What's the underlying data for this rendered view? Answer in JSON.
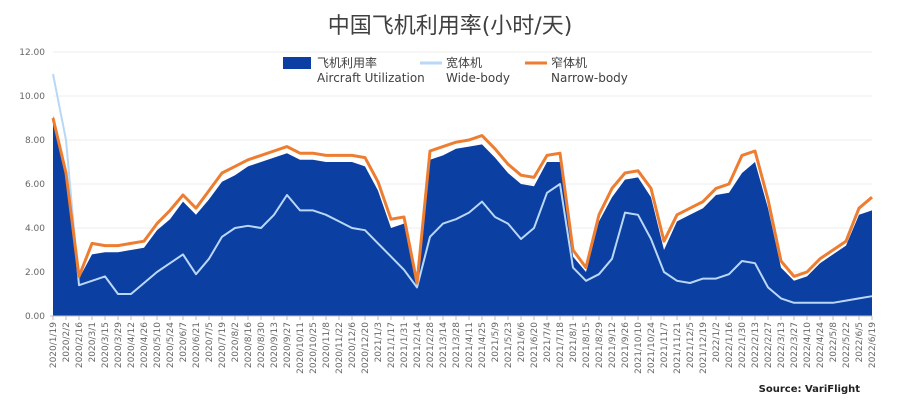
{
  "chart_data": {
    "type": "area",
    "title": "中国飞机利用率(小时/天)",
    "source": "Source: VariFlight",
    "xlabel": "",
    "ylabel": "",
    "ylim": [
      0,
      12
    ],
    "yticks": [
      "0.00",
      "2.00",
      "4.00",
      "6.00",
      "8.00",
      "10.00",
      "12.00"
    ],
    "grid": true,
    "legend_position": "top",
    "categories": [
      "2020/1/19",
      "2020/2/2",
      "2020/2/16",
      "2020/3/1",
      "2020/3/15",
      "2020/3/29",
      "2020/4/12",
      "2020/4/26",
      "2020/5/10",
      "2020/5/24",
      "2020/6/7",
      "2020/6/21",
      "2020/7/5",
      "2020/7/19",
      "2020/8/2",
      "2020/8/16",
      "2020/8/30",
      "2020/9/13",
      "2020/9/27",
      "2020/10/11",
      "2020/10/25",
      "2020/11/8",
      "2020/11/22",
      "2020/12/6",
      "2020/12/20",
      "2021/1/3",
      "2021/1/17",
      "2021/1/31",
      "2021/2/14",
      "2021/2/28",
      "2021/3/14",
      "2021/3/28",
      "2021/4/11",
      "2021/4/25",
      "2021/5/9",
      "2021/5/23",
      "2021/6/6",
      "2021/6/20",
      "2021/7/4",
      "2021/7/18",
      "2021/8/1",
      "2021/8/15",
      "2021/8/29",
      "2021/9/12",
      "2021/9/26",
      "2021/10/10",
      "2021/10/24",
      "2021/11/7",
      "2021/11/21",
      "2021/12/5",
      "2021/12/19",
      "2022/1/2",
      "2022/1/16",
      "2022/1/30",
      "2022/2/13",
      "2022/2/27",
      "2022/3/13",
      "2022/3/27",
      "2022/4/10",
      "2022/4/24",
      "2022/5/8",
      "2022/5/22",
      "2022/6/5",
      "2022/6/19"
    ],
    "series": [
      {
        "name": "飞机利用率",
        "name_en": "Aircraft Utilization",
        "kind": "area",
        "color": "#0b3fa1",
        "values": [
          9.1,
          6.5,
          1.7,
          2.8,
          2.9,
          2.9,
          3.0,
          3.1,
          3.9,
          4.4,
          5.2,
          4.6,
          5.3,
          6.1,
          6.4,
          6.8,
          7.0,
          7.2,
          7.4,
          7.1,
          7.1,
          7.0,
          7.0,
          7.0,
          6.8,
          5.7,
          4.0,
          4.2,
          1.3,
          7.1,
          7.3,
          7.6,
          7.7,
          7.8,
          7.2,
          6.5,
          6.0,
          5.9,
          7.0,
          7.0,
          2.7,
          2.0,
          4.3,
          5.4,
          6.2,
          6.3,
          5.4,
          3.0,
          4.3,
          4.6,
          4.9,
          5.5,
          5.6,
          6.5,
          7.0,
          4.9,
          2.2,
          1.6,
          1.8,
          2.4,
          2.8,
          3.2,
          4.6,
          4.8
        ]
      },
      {
        "name": "宽体机",
        "name_en": "Wide-body",
        "kind": "line",
        "color": "#b9d7f7",
        "values": [
          11.0,
          8.0,
          1.4,
          1.6,
          1.8,
          1.0,
          1.0,
          1.5,
          2.0,
          2.4,
          2.8,
          1.9,
          2.6,
          3.6,
          4.0,
          4.1,
          4.0,
          4.6,
          5.5,
          4.8,
          4.8,
          4.6,
          4.3,
          4.0,
          3.9,
          3.3,
          2.7,
          2.1,
          1.3,
          3.6,
          4.2,
          4.4,
          4.7,
          5.2,
          4.5,
          4.2,
          3.5,
          4.0,
          5.6,
          6.0,
          2.2,
          1.6,
          1.9,
          2.6,
          4.7,
          4.6,
          3.5,
          2.0,
          1.6,
          1.5,
          1.7,
          1.7,
          1.9,
          2.5,
          2.4,
          1.3,
          0.8,
          0.6,
          0.6,
          0.6,
          0.6,
          0.7,
          0.8,
          0.9
        ]
      },
      {
        "name": "窄体机",
        "name_en": "Narrow-body",
        "kind": "line",
        "color": "#ed7d31",
        "values": [
          9.0,
          6.5,
          1.8,
          3.3,
          3.2,
          3.2,
          3.3,
          3.4,
          4.2,
          4.8,
          5.5,
          4.9,
          5.7,
          6.5,
          6.8,
          7.1,
          7.3,
          7.5,
          7.7,
          7.4,
          7.4,
          7.3,
          7.3,
          7.3,
          7.2,
          6.1,
          4.4,
          4.5,
          1.5,
          7.5,
          7.7,
          7.9,
          8.0,
          8.2,
          7.6,
          6.9,
          6.4,
          6.3,
          7.3,
          7.4,
          3.0,
          2.2,
          4.6,
          5.8,
          6.5,
          6.6,
          5.8,
          3.4,
          4.6,
          4.9,
          5.2,
          5.8,
          6.0,
          7.3,
          7.5,
          5.3,
          2.5,
          1.8,
          2.0,
          2.6,
          3.0,
          3.4,
          4.9,
          5.4
        ]
      }
    ]
  }
}
